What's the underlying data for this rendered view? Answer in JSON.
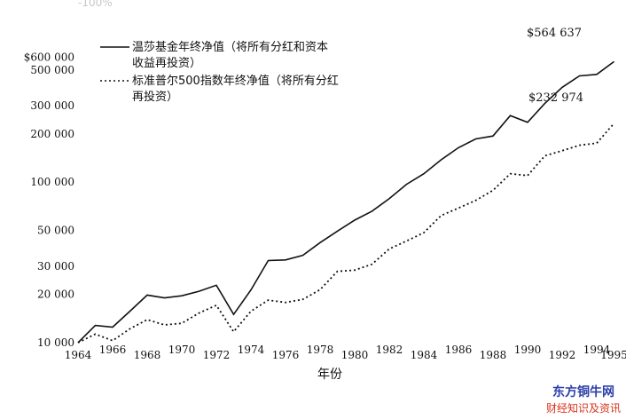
{
  "corner_text": "-100%",
  "chart_data": {
    "type": "line",
    "x": [
      1964,
      1965,
      1966,
      1967,
      1968,
      1969,
      1970,
      1971,
      1972,
      1973,
      1974,
      1975,
      1976,
      1977,
      1978,
      1979,
      1980,
      1981,
      1982,
      1983,
      1984,
      1985,
      1986,
      1987,
      1988,
      1989,
      1990,
      1991,
      1992,
      1993,
      1994,
      1995
    ],
    "x_tick_labels": [
      "1964",
      "1966",
      "1968",
      "1970",
      "1972",
      "1974",
      "1976",
      "1978",
      "1980",
      "1982",
      "1984",
      "1986",
      "1988",
      "1990",
      "1992",
      "1994",
      "1995"
    ],
    "y_tick_labels": [
      "$600 000",
      "500 000",
      "300 000",
      "200 000",
      "100 000",
      "50 000",
      "30 000",
      "20 000",
      "10 000"
    ],
    "y_ticks": [
      600000,
      500000,
      300000,
      200000,
      100000,
      50000,
      30000,
      20000,
      10000
    ],
    "y_scale": "log",
    "ylim": [
      10000,
      600000
    ],
    "xlabel": "年份",
    "ylabel": "",
    "title": "",
    "legend_placement": "top-left",
    "series": [
      {
        "name": "温莎基金年终净值（将所有分红和资本收益再投资）",
        "legend_lines": [
          "温莎基金年终净值（将所有分红和资本",
          "收益再投资）"
        ],
        "style": "solid",
        "values": [
          10000,
          12800,
          12500,
          15700,
          19800,
          19000,
          19600,
          20900,
          22800,
          15000,
          21300,
          32500,
          32800,
          35000,
          42000,
          49500,
          58000,
          66000,
          79000,
          97000,
          113000,
          138000,
          164000,
          186000,
          194000,
          260000,
          236000,
          310000,
          390000,
          460000,
          470000,
          564637
        ],
        "end_label": "$564 637"
      },
      {
        "name": "标准普尔500指数年终净值（将所有分红再投资）",
        "legend_lines": [
          "标准普尔500指数年终净值（将所有分红",
          "再投资）"
        ],
        "style": "dotted",
        "values": [
          10000,
          11300,
          10300,
          12200,
          13900,
          12900,
          13200,
          15300,
          17100,
          11700,
          15700,
          18400,
          17800,
          18600,
          21400,
          27800,
          28300,
          30800,
          38400,
          43000,
          48500,
          62000,
          69000,
          77000,
          89000,
          113000,
          110000,
          146000,
          157000,
          170000,
          175000,
          232974
        ],
        "end_label": "$232 974"
      }
    ]
  },
  "watermark": {
    "line1": "东方铜牛网",
    "line2": "财经知识及资讯"
  }
}
